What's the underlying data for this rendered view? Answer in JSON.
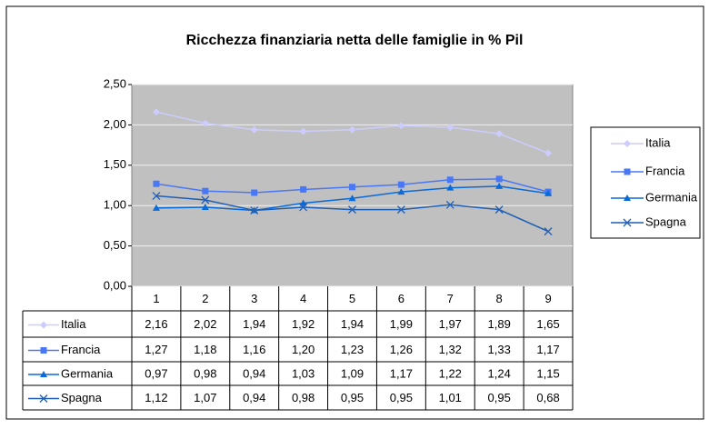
{
  "chart_data": {
    "type": "line",
    "title": "Ricchezza finanziaria netta delle famiglie in % Pil",
    "categories": [
      "1",
      "2",
      "3",
      "4",
      "5",
      "6",
      "7",
      "8",
      "9"
    ],
    "ylim": [
      0,
      2.5
    ],
    "yticks": [
      {
        "value": 0,
        "label": "0,00"
      },
      {
        "value": 0.5,
        "label": "0,50"
      },
      {
        "value": 1,
        "label": "1,00"
      },
      {
        "value": 1.5,
        "label": "1,50"
      },
      {
        "value": 2,
        "label": "2,00"
      },
      {
        "value": 2.5,
        "label": "2,50"
      }
    ],
    "grid": true,
    "legend": "right",
    "series": [
      {
        "name": "Italia",
        "color": "#ccccff",
        "marker": "diamond",
        "values": [
          2.16,
          2.02,
          1.94,
          1.92,
          1.94,
          1.99,
          1.97,
          1.89,
          1.65
        ],
        "value_labels": [
          "2,16",
          "2,02",
          "1,94",
          "1,92",
          "1,94",
          "1,99",
          "1,97",
          "1,89",
          "1,65"
        ]
      },
      {
        "name": "Francia",
        "color": "#4a78f5",
        "marker": "square",
        "values": [
          1.27,
          1.18,
          1.16,
          1.2,
          1.23,
          1.26,
          1.32,
          1.33,
          1.17
        ],
        "value_labels": [
          "1,27",
          "1,18",
          "1,16",
          "1,20",
          "1,23",
          "1,26",
          "1,32",
          "1,33",
          "1,17"
        ]
      },
      {
        "name": "Germania",
        "color": "#0a6ad8",
        "marker": "triangle",
        "values": [
          0.97,
          0.98,
          0.94,
          1.03,
          1.09,
          1.17,
          1.22,
          1.24,
          1.15
        ],
        "value_labels": [
          "0,97",
          "0,98",
          "0,94",
          "1,03",
          "1,09",
          "1,17",
          "1,22",
          "1,24",
          "1,15"
        ]
      },
      {
        "name": "Spagna",
        "color": "#1f5fb5",
        "marker": "x",
        "values": [
          1.12,
          1.07,
          0.94,
          0.98,
          0.95,
          0.95,
          1.01,
          0.95,
          0.68
        ],
        "value_labels": [
          "1,12",
          "1,07",
          "0,94",
          "0,98",
          "0,95",
          "0,95",
          "1,01",
          "0,95",
          "0,68"
        ]
      }
    ]
  }
}
